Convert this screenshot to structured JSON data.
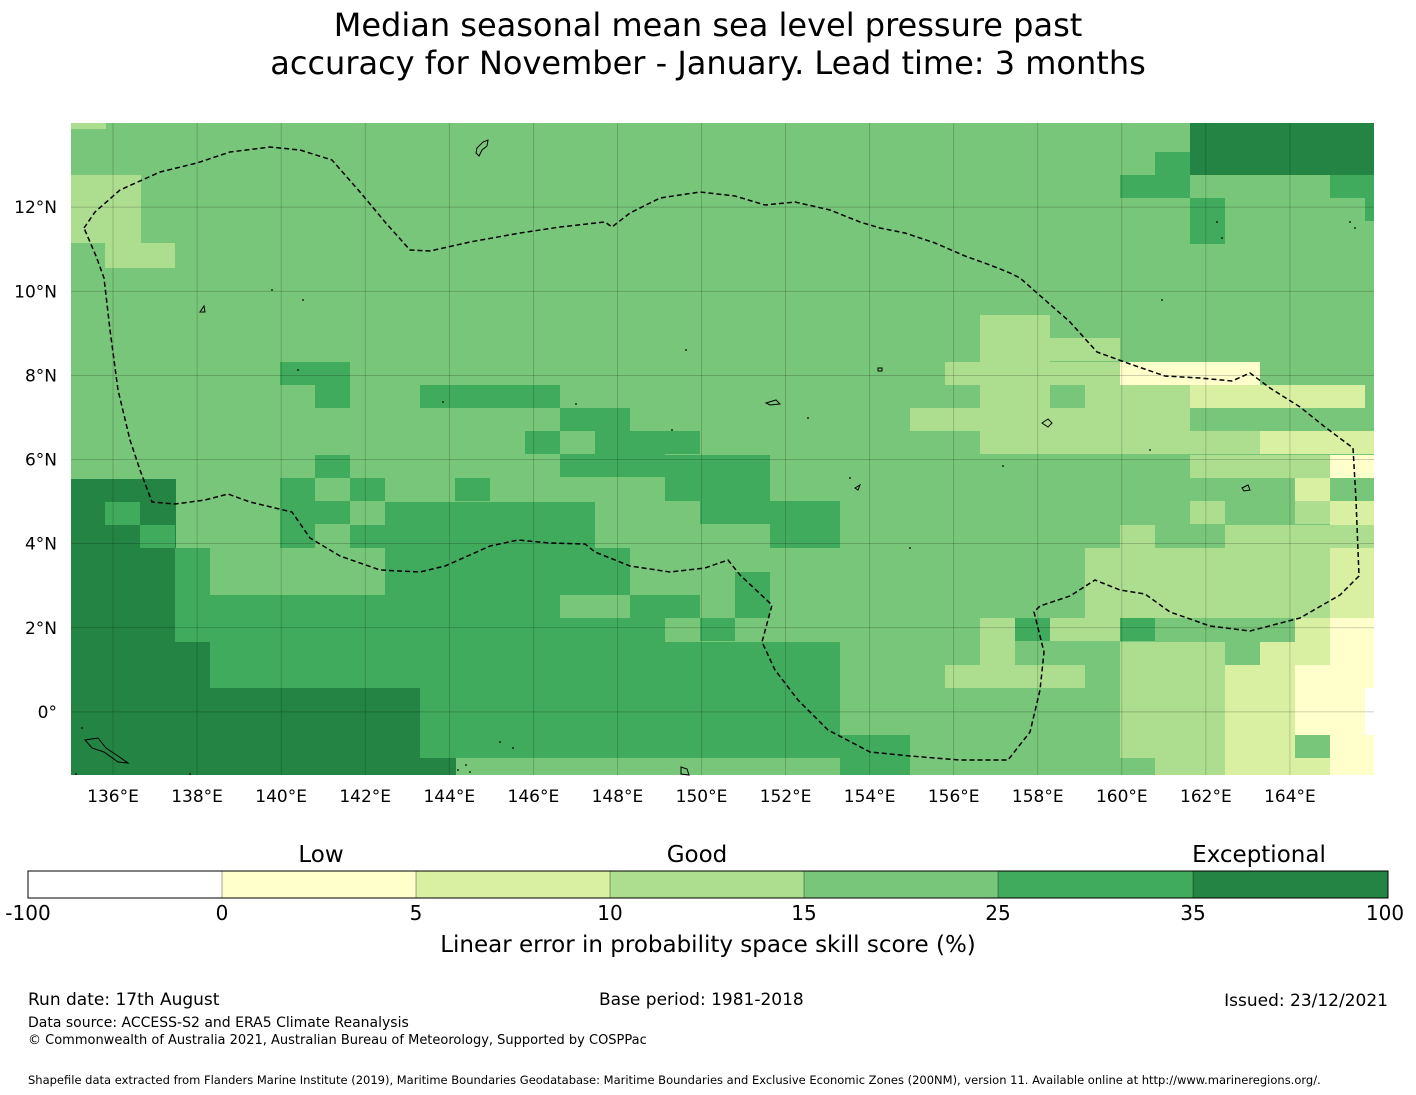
{
  "title": {
    "line1": "Median seasonal mean sea level pressure past",
    "line2": "accuracy for November - January. Lead time: 3 months"
  },
  "map": {
    "lon_range": [
      135,
      166
    ],
    "lat_range": [
      -1.5,
      14
    ],
    "lon_ticks": [
      "136°E",
      "138°E",
      "140°E",
      "142°E",
      "144°E",
      "146°E",
      "148°E",
      "150°E",
      "152°E",
      "154°E",
      "156°E",
      "158°E",
      "160°E",
      "162°E",
      "164°E"
    ],
    "lat_ticks": [
      "12°N",
      "10°N",
      "8°N",
      "6°N",
      "4°N",
      "2°N",
      "0°"
    ],
    "grid": true,
    "background_color": "#78c679",
    "category_colors": {
      "low": "#ffffcc",
      "low2": "#d9f0a3",
      "good": "#addd8e",
      "good2": "#78c679",
      "exc": "#41ab5d",
      "exc2": "#238443"
    },
    "boundary": "dashed EEZ outline"
  },
  "colorbar": {
    "category_labels": [
      "Low",
      "Good",
      "Exceptional"
    ],
    "ticks": [
      "-100",
      "0",
      "5",
      "10",
      "15",
      "25",
      "35",
      "100"
    ],
    "colors": [
      "#ffffff",
      "#ffffcc",
      "#d9f0a3",
      "#addd8e",
      "#78c679",
      "#41ab5d",
      "#238443"
    ],
    "title": "Linear error in probability space skill score (%)"
  },
  "footer": {
    "run_date": "Run date: 17th August",
    "base_period": "Base period: 1981-2018",
    "issued": "Issued: 23/12/2021",
    "data_source": "Data source: ACCESS-S2 and ERA5 Climate Reanalysis",
    "copyright": "© Commonwealth of Australia 2021, Australian Bureau of Meteorology, Supported by COSPPac",
    "shapefile": "Shapefile data extracted from Flanders Marine Institute (2019), Maritime Boundaries Geodatabase: Maritime Boundaries and Exclusive Economic Zones (200NM), version 11. Available online at http://www.marineregions.org/."
  }
}
